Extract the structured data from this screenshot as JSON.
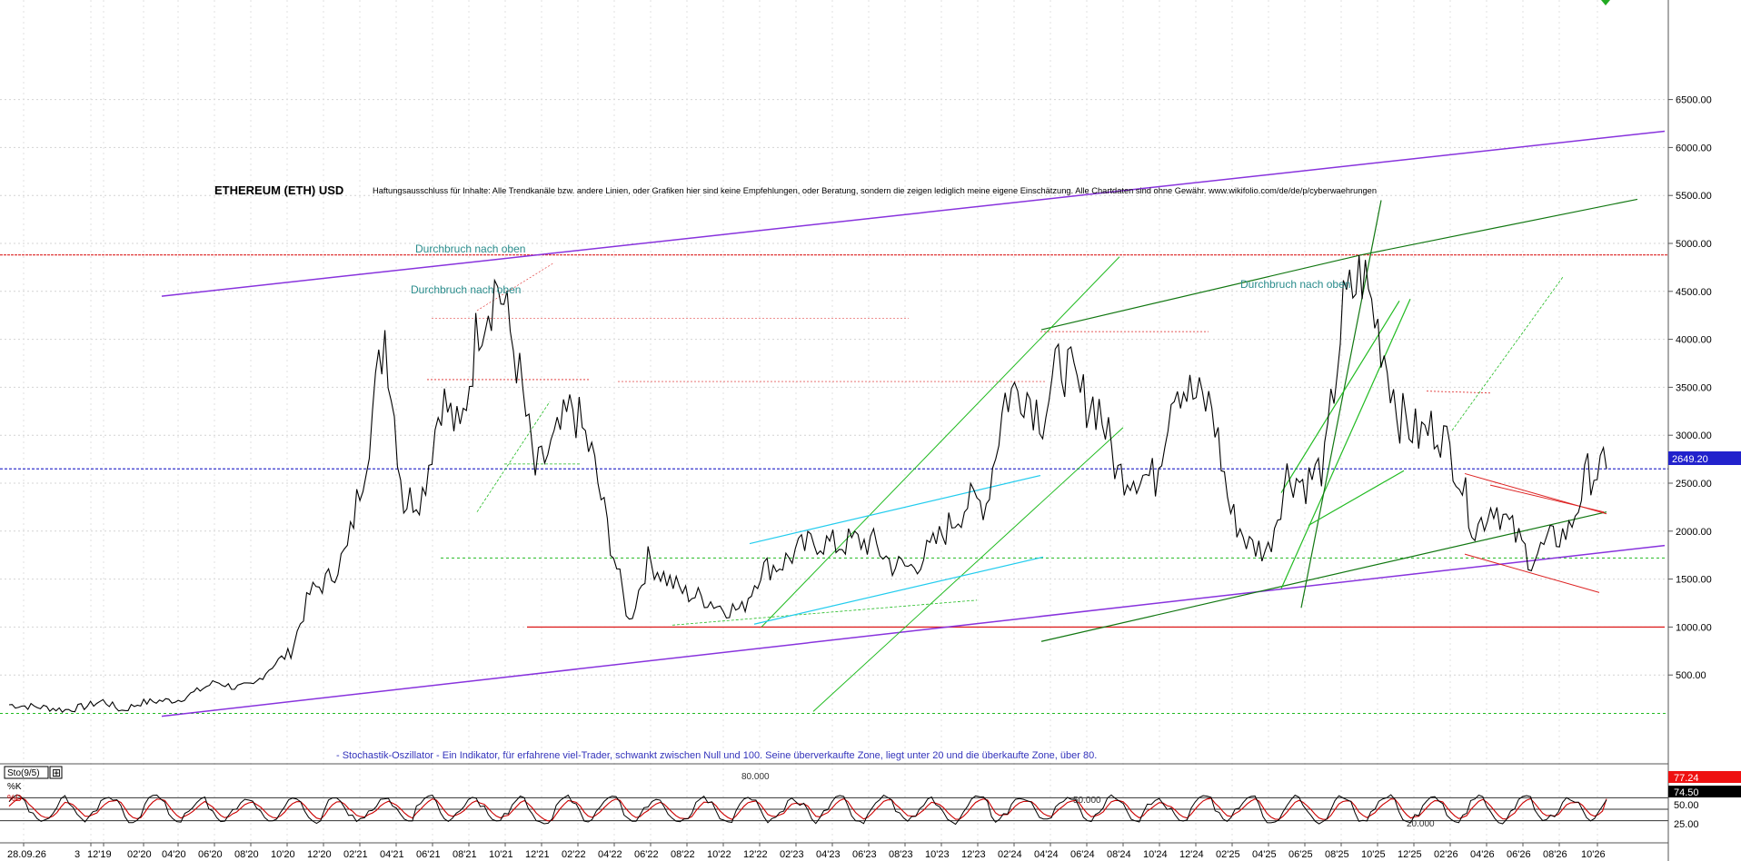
{
  "window": {
    "title": "ETHEREUM (ETH) USD",
    "disclaimer": "Haftungsausschluss für Inhalte: Alle Trendkanäle bzw. andere Linien, oder Grafiken hier sind keine Empfehlungen, oder Beratung, sondern die zeigen lediglich meine eigene Einschätzung. Alle Chartdaten sind ohne Gewähr. www.wikifolio.com/de/de/p/cyberwaehrungen"
  },
  "annotations": {
    "breakout_1": "Durchbruch nach oben",
    "breakout_2": "Durchbruch nach oben",
    "breakout_3": "Durchbruch nach oben",
    "stoch_note": "- Stochastik-Oszillator - Ein Indikator, für erfahrene viel-Trader, schwankt zwischen Null und 100. Seine überverkaufte Zone, liegt unter 20 und die überkaufte Zone, über 80."
  },
  "colors": {
    "price_line": "#000000",
    "current_price_line": "#3333cc",
    "resistance": "#dd2222",
    "channel_purple": "#8833dd",
    "trend_green": "#22bb22",
    "trend_dark_green": "#117711",
    "cyan": "#22ccee",
    "stoch_k": "#000000",
    "stoch_d": "#cc0000",
    "badge_red": "#ee1111",
    "badge_black": "#000000",
    "badge_blue": "#2222cc"
  },
  "indicator_panel": {
    "label": "Sto(9/5)",
    "k_label": "%K",
    "d_label": "%D",
    "k_value": "74.50",
    "d_value": "77.24",
    "levels": [
      "80.000",
      "50.000",
      "20.000"
    ],
    "scale": [
      "50.00",
      "25.00"
    ]
  },
  "current_price": "2649.20",
  "chart_data": {
    "type": "line",
    "title": "ETHEREUM (ETH) USD",
    "xlabel": "",
    "ylabel": "",
    "ylim": [
      0,
      6700
    ],
    "y_ticks": [
      "6500.00",
      "6000.00",
      "5500.00",
      "5000.00",
      "4500.00",
      "4000.00",
      "3500.00",
      "3000.00",
      "2500.00",
      "2000.00",
      "1500.00",
      "1000.00",
      "500.00"
    ],
    "x_ticks": [
      "28.09.26",
      "3",
      "12'19",
      "02'20",
      "04'20",
      "06'20",
      "08'20",
      "10'20",
      "12'20",
      "02'21",
      "04'21",
      "06'21",
      "08'21",
      "10'21",
      "12'21",
      "02'22",
      "04'22",
      "06'22",
      "08'22",
      "10'22",
      "12'22",
      "02'23",
      "04'23",
      "06'23",
      "08'23",
      "10'23",
      "12'23",
      "02'24",
      "04'24",
      "06'24",
      "08'24",
      "10'24",
      "12'24",
      "02'25",
      "04'25",
      "06'25",
      "08'25",
      "10'25",
      "12'25",
      "02'26",
      "04'26",
      "06'26",
      "08'26",
      "10'26"
    ],
    "grid": true,
    "legend": "none",
    "series": [
      {
        "x": [
          "09'19",
          "10'19",
          "11'19",
          "12'19",
          "01'20",
          "02'20",
          "03'20",
          "04'20",
          "05'20",
          "06'20",
          "07'20",
          "08'20",
          "09'20",
          "10'20",
          "11'20",
          "12'20",
          "01'21",
          "02'21",
          "03'21",
          "04'21",
          "05'21",
          "06'21",
          "07'21",
          "08'21",
          "09'21",
          "10'21",
          "11'21",
          "12'21",
          "01'22",
          "02'22",
          "03'22",
          "04'22",
          "05'22",
          "06'22",
          "07'22",
          "08'22",
          "09'22",
          "10'22",
          "11'22",
          "12'22",
          "01'23",
          "02'23",
          "03'23",
          "04'23",
          "05'23",
          "06'23",
          "07'23",
          "08'23",
          "09'23",
          "10'23",
          "11'23",
          "12'23",
          "01'24",
          "02'24",
          "03'24",
          "04'24",
          "05'24",
          "06'24",
          "07'24",
          "08'24",
          "09'24",
          "10'24",
          "11'24",
          "12'24",
          "01'25",
          "02'25",
          "03'25",
          "04'25",
          "05'25",
          "06'25",
          "07'25",
          "08'25",
          "09'25",
          "10'25",
          "11'25",
          "12'25",
          "01'26",
          "02'26",
          "03'26",
          "04'26",
          "05'26",
          "06'26",
          "07'26",
          "08'26",
          "09'26",
          "10'26"
        ],
        "values": [
          190,
          175,
          160,
          135,
          170,
          230,
          130,
          210,
          230,
          240,
          330,
          430,
          370,
          390,
          600,
          740,
          1350,
          1500,
          1800,
          2800,
          4100,
          2300,
          2400,
          3400,
          3000,
          4200,
          4600,
          3800,
          2600,
          2900,
          3300,
          2800,
          1900,
          1050,
          1700,
          1500,
          1350,
          1300,
          1200,
          1180,
          1600,
          1650,
          1800,
          1900,
          1850,
          1900,
          1870,
          1650,
          1620,
          1800,
          2050,
          2300,
          2300,
          3400,
          3500,
          3200,
          3800,
          3400,
          3300,
          2600,
          2600,
          2550,
          3600,
          3400,
          3300,
          2200,
          1850,
          1800,
          2600,
          2500,
          2700,
          4300,
          4700,
          4000,
          3200,
          3000,
          3100,
          2700,
          2000,
          2300,
          2000,
          1700,
          1900,
          2000,
          2600,
          2649
        ]
      }
    ],
    "reference_lines": {
      "current_price": 2649.2,
      "resistance": [
        4880,
        1000
      ],
      "support_dashed": [
        1720,
        1000
      ]
    },
    "stochastic": {
      "k_last": 74.5,
      "d_last": 77.24,
      "levels": [
        80,
        50,
        20
      ]
    }
  }
}
